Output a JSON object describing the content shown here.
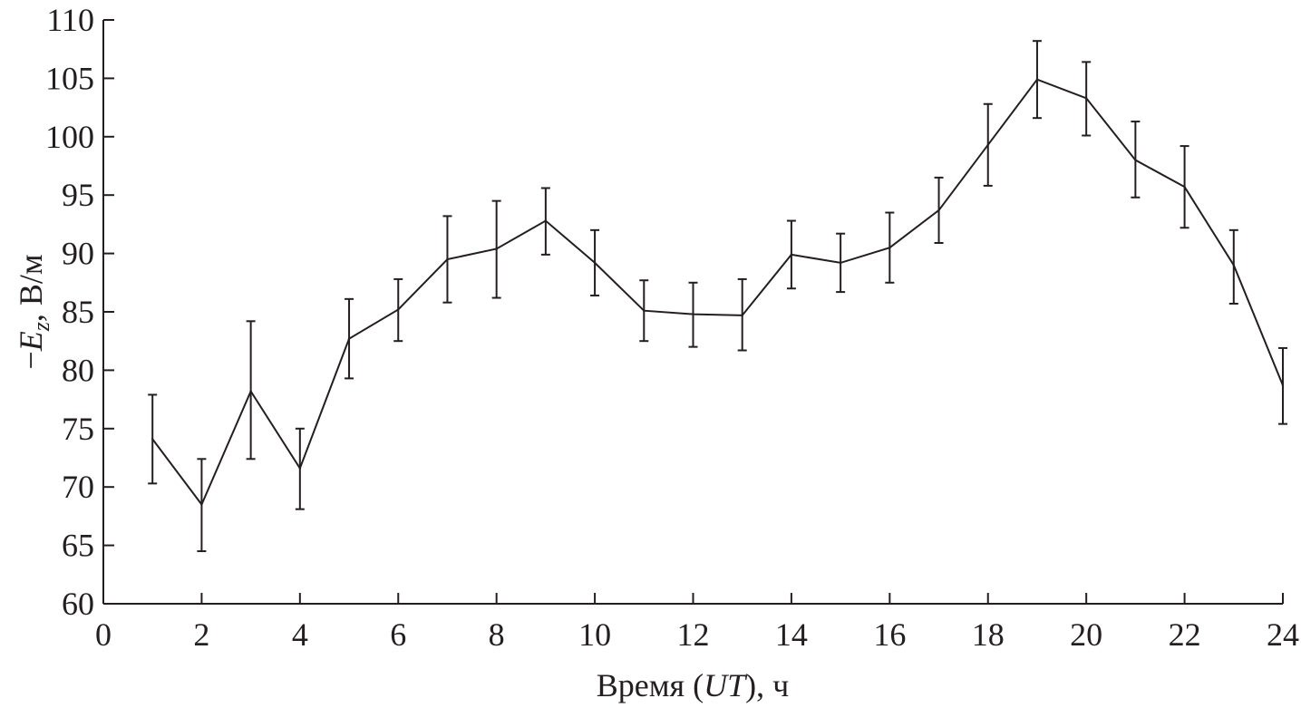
{
  "chart_data": {
    "type": "line",
    "title": "",
    "xlabel_parts": [
      "Время (",
      "UT",
      "), ч"
    ],
    "ylabel_parts": [
      "−",
      "E",
      "z",
      ", В/м"
    ],
    "xlim": [
      0,
      24
    ],
    "ylim": [
      60,
      110
    ],
    "xticks": [
      0,
      2,
      4,
      6,
      8,
      10,
      12,
      14,
      16,
      18,
      20,
      22,
      24
    ],
    "yticks": [
      60,
      65,
      70,
      75,
      80,
      85,
      90,
      95,
      100,
      105,
      110
    ],
    "grid": false,
    "series": [
      {
        "x": [
          1,
          2,
          3,
          4,
          5,
          6,
          7,
          8,
          9,
          10,
          11,
          12,
          13,
          14,
          15,
          16,
          17,
          18,
          19,
          20,
          21,
          22,
          23,
          24
        ],
        "y": [
          74.1,
          68.5,
          78.2,
          71.6,
          82.7,
          85.2,
          89.5,
          90.4,
          92.8,
          89.2,
          85.1,
          84.8,
          84.7,
          89.9,
          89.2,
          90.5,
          93.7,
          99.3,
          104.9,
          103.3,
          98.0,
          95.7,
          89.0,
          78.7
        ],
        "err_low": [
          70.3,
          64.5,
          72.4,
          68.1,
          79.3,
          82.5,
          85.8,
          86.2,
          89.9,
          86.4,
          82.5,
          82.0,
          81.7,
          87.0,
          86.7,
          87.5,
          90.9,
          95.8,
          101.6,
          100.1,
          94.8,
          92.2,
          85.7,
          75.4
        ],
        "err_high": [
          77.9,
          72.4,
          84.2,
          75.0,
          86.1,
          87.8,
          93.2,
          94.5,
          95.6,
          92.0,
          87.7,
          87.5,
          87.8,
          92.8,
          91.7,
          93.5,
          96.5,
          102.8,
          108.2,
          106.4,
          101.3,
          99.2,
          92.0,
          81.9
        ]
      }
    ]
  }
}
